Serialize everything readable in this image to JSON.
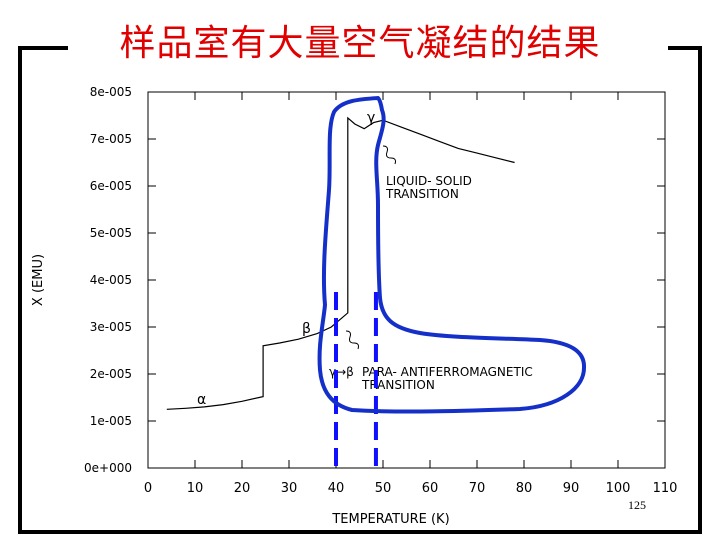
{
  "slide": {
    "title": "样品室有大量空气凝结的结果",
    "slide_number": "125"
  },
  "chart_data": {
    "type": "line",
    "xlabel": "TEMPERATURE (K)",
    "ylabel": "X (EMU)",
    "xlim": [
      0,
      110
    ],
    "ylim": [
      0,
      8e-05
    ],
    "x_ticks": [
      "0",
      "10",
      "20",
      "30",
      "40",
      "50",
      "60",
      "70",
      "80",
      "90",
      "100",
      "110"
    ],
    "y_ticks": [
      "0e+000",
      "1e-005",
      "2e-005",
      "3e-005",
      "4e-005",
      "5e-005",
      "6e-005",
      "7e-005",
      "8e-005"
    ],
    "series": [
      {
        "x": [
          4,
          8,
          12,
          16,
          20,
          24.5,
          24.5,
          28,
          32,
          36,
          39,
          42.5,
          42.5,
          44,
          46,
          48,
          50,
          54,
          58,
          62,
          66,
          70,
          74,
          78
        ],
        "y": [
          1.25e-05,
          1.27e-05,
          1.3e-05,
          1.35e-05,
          1.42e-05,
          1.52e-05,
          2.6e-05,
          2.66e-05,
          2.74e-05,
          2.86e-05,
          3e-05,
          3.3e-05,
          7.45e-05,
          7.32e-05,
          7.22e-05,
          7.35e-05,
          7.4e-05,
          7.25e-05,
          7.1e-05,
          6.95e-05,
          6.8e-05,
          6.7e-05,
          6.6e-05,
          6.5e-05
        ]
      }
    ],
    "annotations": {
      "alpha": "α",
      "beta": "β",
      "gamma": "γ",
      "gamma_beta": "γ→β",
      "liquid_solid_line1": "LIQUID-  SOLID",
      "liquid_solid_line2": "TRANSITION",
      "para_anti_line1": "PARA-  ANTIFERROMAGNETIC",
      "para_anti_line2": "TRANSITION"
    },
    "markers": {
      "dashed_lines_x": [
        40,
        48.5
      ],
      "dashed_color": "#1010ff",
      "outline_color": "#1530c8"
    },
    "grid": false,
    "legend": "none"
  }
}
